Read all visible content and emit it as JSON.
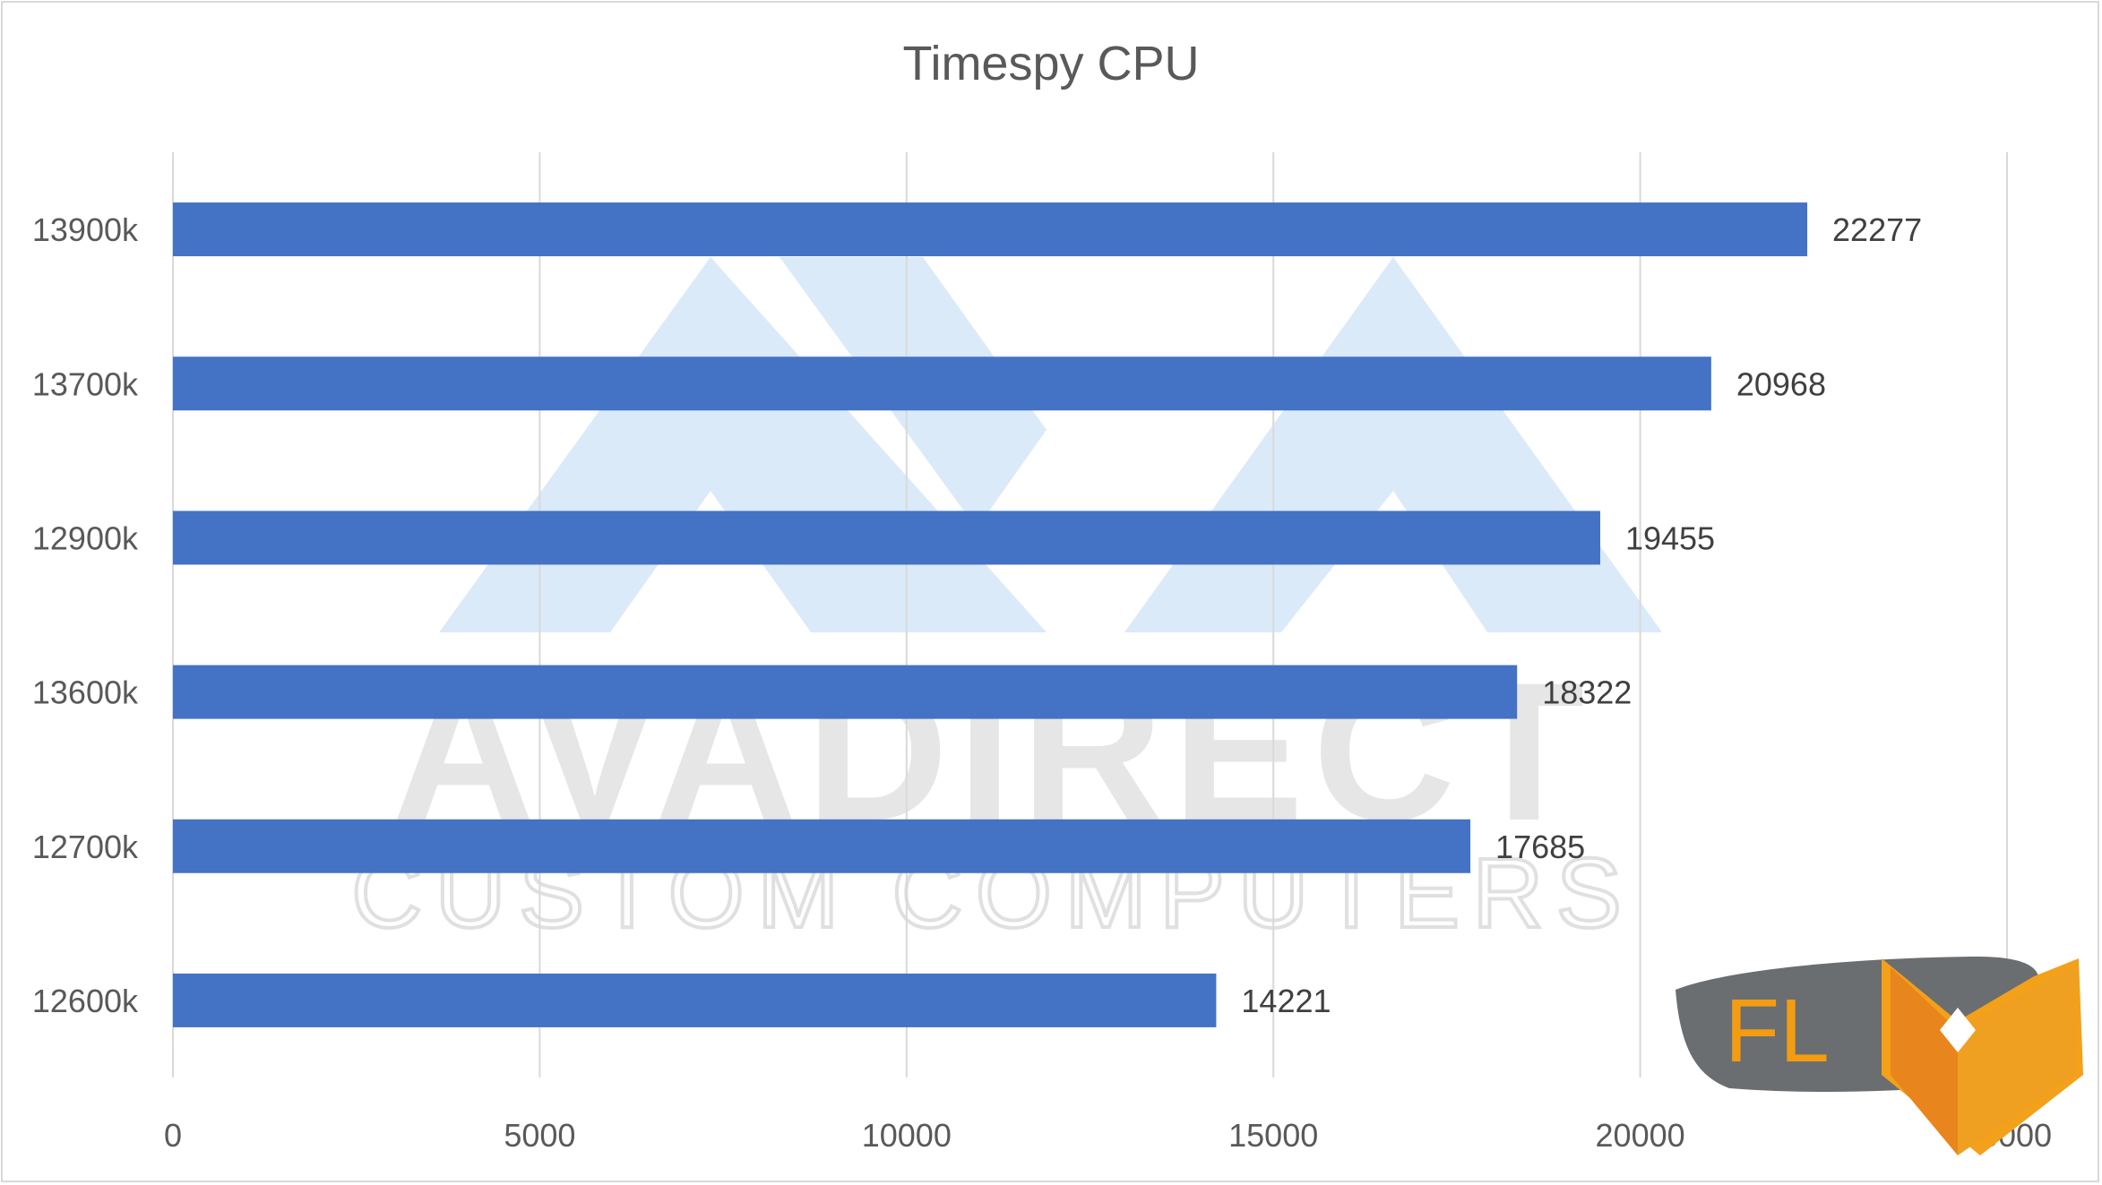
{
  "chart_data": {
    "type": "bar",
    "orientation": "horizontal",
    "title": "Timespy CPU",
    "xlabel": "",
    "ylabel": "",
    "categories": [
      "13900k",
      "13700k",
      "12900k",
      "13600k",
      "12700k",
      "12600k"
    ],
    "values": [
      22277,
      20968,
      19455,
      18322,
      17685,
      14221
    ],
    "xlim": [
      0,
      25000
    ],
    "x_ticks": [
      "0",
      "5000",
      "10000",
      "15000",
      "20000",
      "25000"
    ],
    "grid": "vertical",
    "legend": "none",
    "bar_color": "#4472c4"
  },
  "watermark": {
    "brand": "AVADIRECT",
    "tagline": "CUSTOM COMPUTERS",
    "corner_logo_text": "FL"
  }
}
